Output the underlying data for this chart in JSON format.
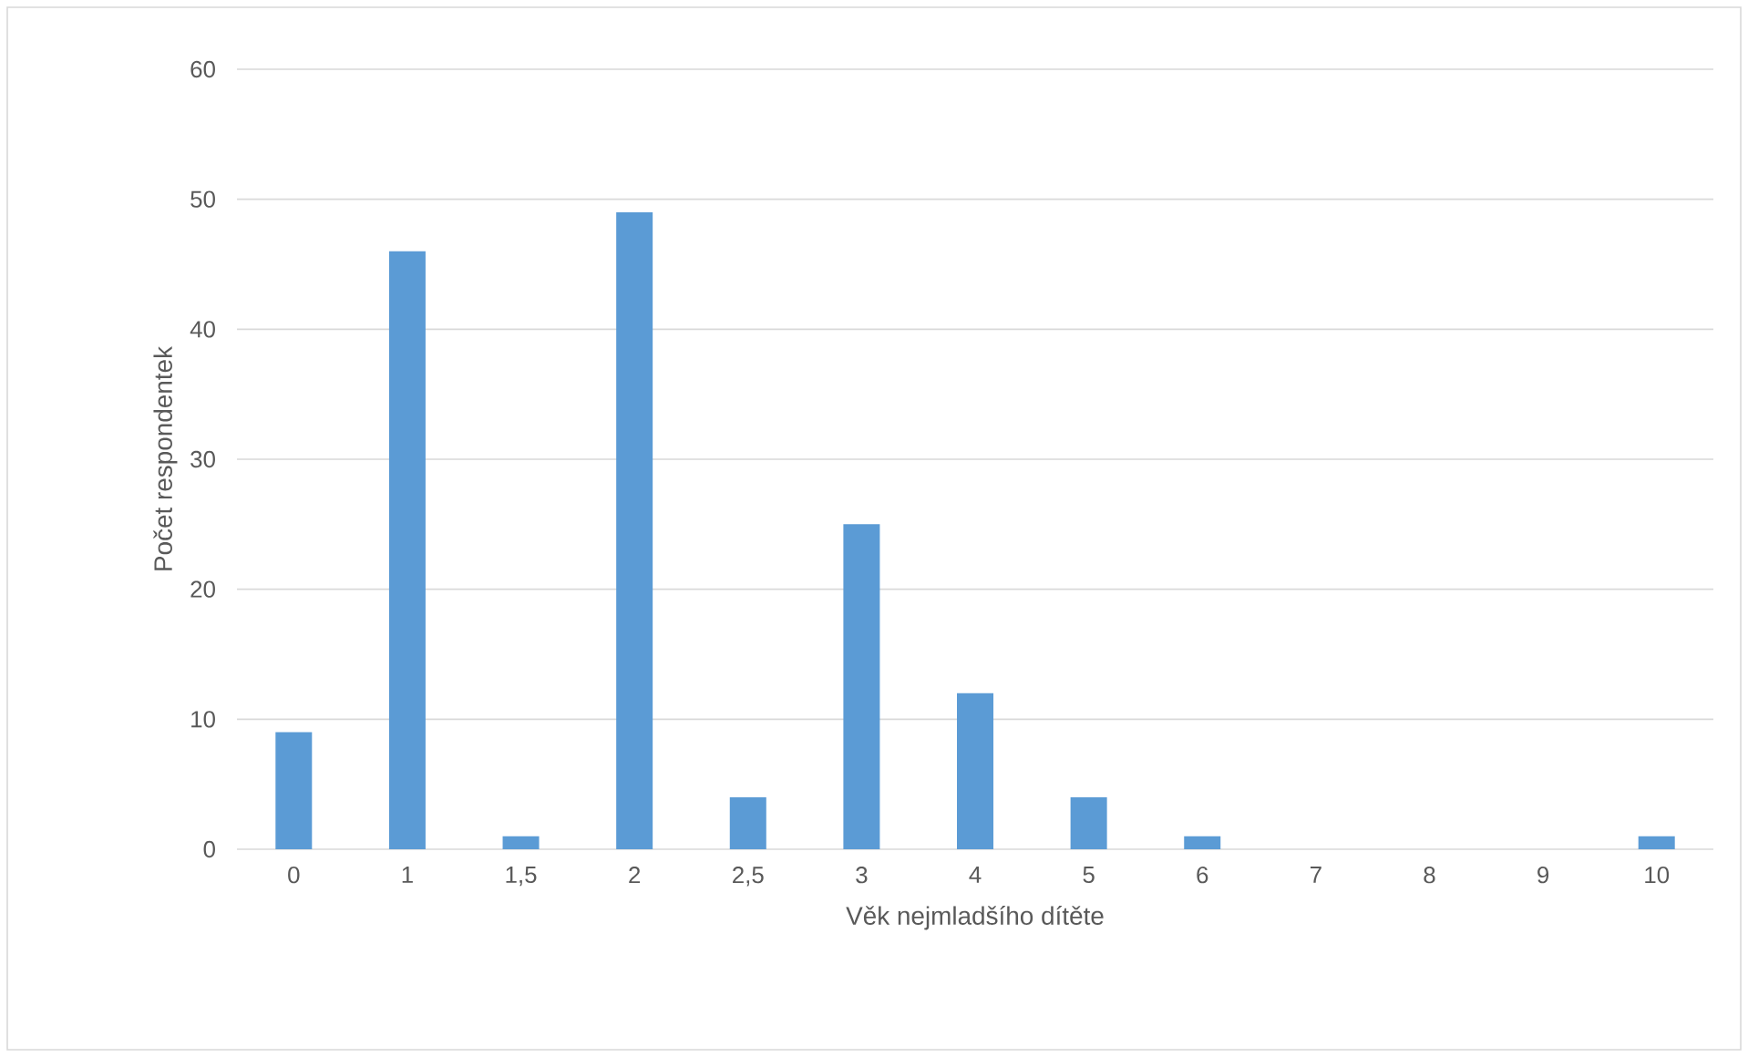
{
  "chart_data": {
    "type": "bar",
    "xlabel": "Věk nejmladšího dítěte",
    "ylabel": "Počet respondentek",
    "categories": [
      "0",
      "1",
      "1,5",
      "2",
      "2,5",
      "3",
      "4",
      "5",
      "6",
      "7",
      "8",
      "9",
      "10"
    ],
    "values": [
      9,
      46,
      1,
      49,
      4,
      25,
      12,
      4,
      1,
      0,
      0,
      0,
      1
    ],
    "color": "#5b9bd5",
    "ylim": [
      0,
      60
    ],
    "yticks": [
      0,
      10,
      20,
      30,
      40,
      50,
      60
    ],
    "grid": "y"
  }
}
